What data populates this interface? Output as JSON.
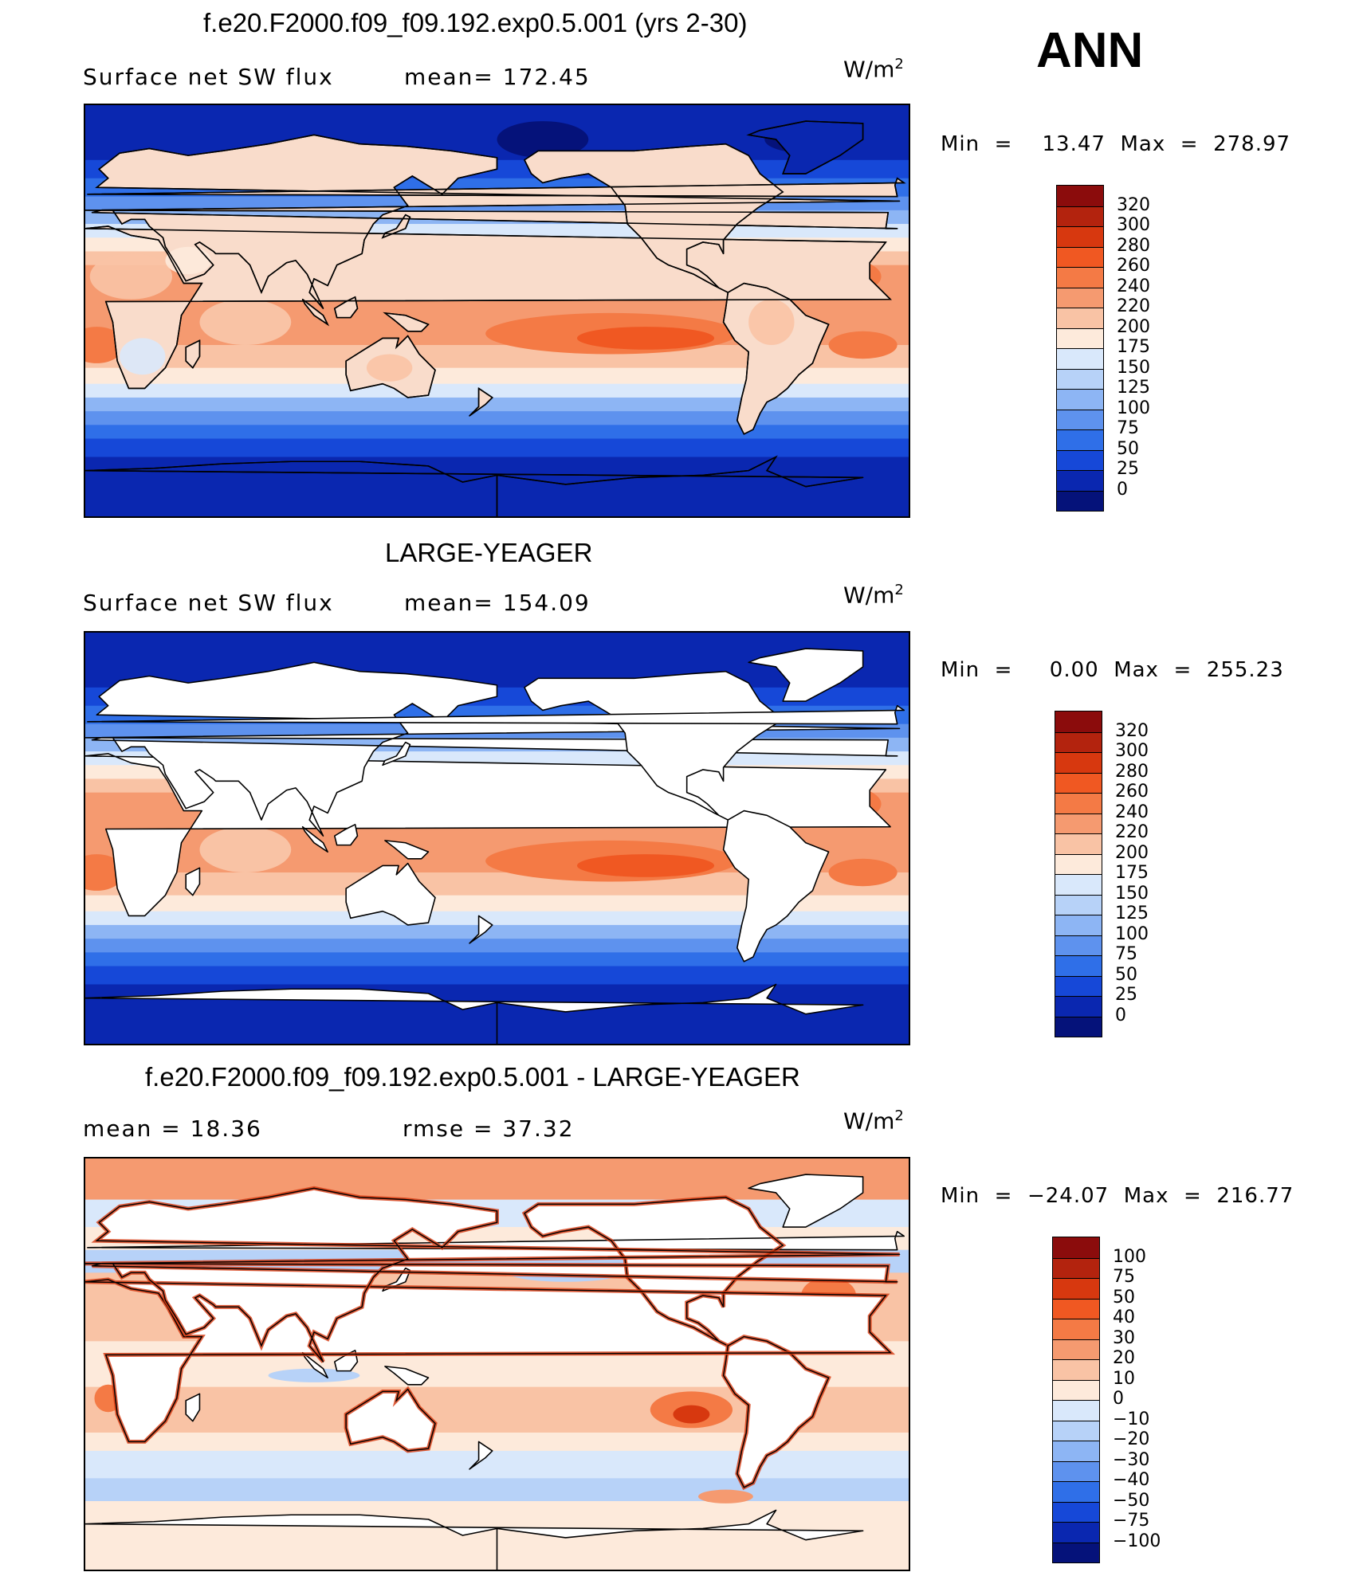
{
  "season": "ANN",
  "panels": [
    {
      "title": "f.e20.F2000.f09_f09.192.exp0.5.001 (yrs 2-30)",
      "left_label": "Surface  net  SW  flux",
      "mid_label": "mean=  172.45",
      "units": "W/m",
      "units_sup": "2",
      "minmax": "Min  =    13.47  Max  =  278.97",
      "map_kind": "model"
    },
    {
      "title": "LARGE-YEAGER",
      "left_label": "Surface  net  SW  flux",
      "mid_label": "mean=  154.09",
      "units": "W/m",
      "units_sup": "2",
      "minmax": "Min  =     0.00  Max  =  255.23",
      "map_kind": "obs"
    },
    {
      "title": "f.e20.F2000.f09_f09.192.exp0.5.001 - LARGE-YEAGER",
      "left_label": "mean  =    18.36",
      "mid_label": "rmse  =    37.32",
      "units": "W/m",
      "units_sup": "2",
      "minmax": "Min  =  −24.07  Max  =  216.77",
      "map_kind": "diff"
    }
  ],
  "colorbars": [
    {
      "labels": [
        "320",
        "300",
        "280",
        "260",
        "240",
        "220",
        "200",
        "175",
        "150",
        "125",
        "100",
        "75",
        "50",
        "25",
        "0"
      ],
      "colors": [
        "#8b0c0c",
        "#b3230e",
        "#d7380f",
        "#f05822",
        "#f47a45",
        "#f59a70",
        "#f9c3a5",
        "#fdeadb",
        "#d9e8fb",
        "#b7d2f8",
        "#8db5f4",
        "#5e92ee",
        "#2f6fe8",
        "#1648d8",
        "#0a27b0",
        "#05127a"
      ]
    },
    {
      "labels": [
        "320",
        "300",
        "280",
        "260",
        "240",
        "220",
        "200",
        "175",
        "150",
        "125",
        "100",
        "75",
        "50",
        "25",
        "0"
      ],
      "colors": [
        "#8b0c0c",
        "#b3230e",
        "#d7380f",
        "#f05822",
        "#f47a45",
        "#f59a70",
        "#f9c3a5",
        "#fdeadb",
        "#d9e8fb",
        "#b7d2f8",
        "#8db5f4",
        "#5e92ee",
        "#2f6fe8",
        "#1648d8",
        "#0a27b0",
        "#05127a"
      ]
    },
    {
      "labels": [
        "100",
        "75",
        "50",
        "40",
        "30",
        "20",
        "10",
        "0",
        "−10",
        "−20",
        "−30",
        "−40",
        "−50",
        "−75",
        "−100"
      ],
      "colors": [
        "#8b0c0c",
        "#b3230e",
        "#d7380f",
        "#f05822",
        "#f47a45",
        "#f59a70",
        "#f9c3a5",
        "#fdeadb",
        "#d9e8fb",
        "#b7d2f8",
        "#8db5f4",
        "#5e92ee",
        "#2f6fe8",
        "#1648d8",
        "#0a27b0",
        "#05127a"
      ]
    }
  ]
}
